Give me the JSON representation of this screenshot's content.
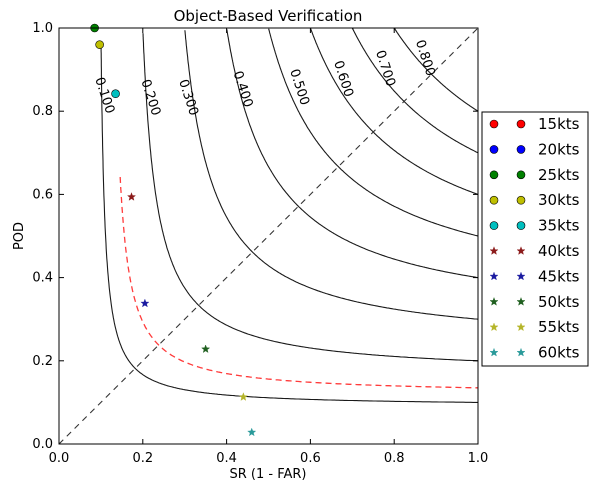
{
  "chart_data": {
    "type": "scatter",
    "title": "Object-Based Verification",
    "xlabel": "SR (1 - FAR)",
    "ylabel": "POD",
    "xlim": [
      0.0,
      1.0
    ],
    "ylim": [
      0.0,
      1.0
    ],
    "x_ticks": [
      "0.0",
      "0.2",
      "0.4",
      "0.6",
      "0.8",
      "1.0"
    ],
    "y_ticks": [
      "0.0",
      "0.2",
      "0.4",
      "0.6",
      "0.8",
      "1.0"
    ],
    "csi_contours": {
      "levels": [
        0.1,
        0.2,
        0.3,
        0.4,
        0.5,
        0.6,
        0.7,
        0.8
      ],
      "labels": [
        "0.100",
        "0.200",
        "0.300",
        "0.400",
        "0.500",
        "0.600",
        "0.700",
        "0.800"
      ]
    },
    "reference_line": "dashed diagonal (bias = 1)",
    "dashed_curve": "red dashed curve",
    "legend_position": "right, outside plot",
    "series": [
      {
        "name": "15kts",
        "marker": "circle",
        "color": "#ff0000",
        "x": [],
        "y": []
      },
      {
        "name": "20kts",
        "marker": "circle",
        "color": "#0000ff",
        "x": [],
        "y": []
      },
      {
        "name": "25kts",
        "marker": "circle",
        "color": "#008000",
        "x": [
          0.085
        ],
        "y": [
          1.0
        ]
      },
      {
        "name": "30kts",
        "marker": "circle",
        "color": "#bfbf00",
        "x": [
          0.097
        ],
        "y": [
          0.96
        ]
      },
      {
        "name": "35kts",
        "marker": "circle",
        "color": "#00bfbf",
        "x": [
          0.135
        ],
        "y": [
          0.842
        ]
      },
      {
        "name": "40kts",
        "marker": "star",
        "color": "#8b1a1a",
        "x": [
          0.173
        ],
        "y": [
          0.594
        ]
      },
      {
        "name": "45kts",
        "marker": "star",
        "color": "#1a1aa0",
        "x": [
          0.205
        ],
        "y": [
          0.338
        ]
      },
      {
        "name": "50kts",
        "marker": "star",
        "color": "#1f5f1f",
        "x": [
          0.35
        ],
        "y": [
          0.228
        ]
      },
      {
        "name": "55kts",
        "marker": "star",
        "color": "#b5b52a",
        "x": [
          0.44
        ],
        "y": [
          0.113
        ]
      },
      {
        "name": "60kts",
        "marker": "star",
        "color": "#2a9a9a",
        "x": [
          0.46
        ],
        "y": [
          0.028
        ]
      }
    ]
  }
}
